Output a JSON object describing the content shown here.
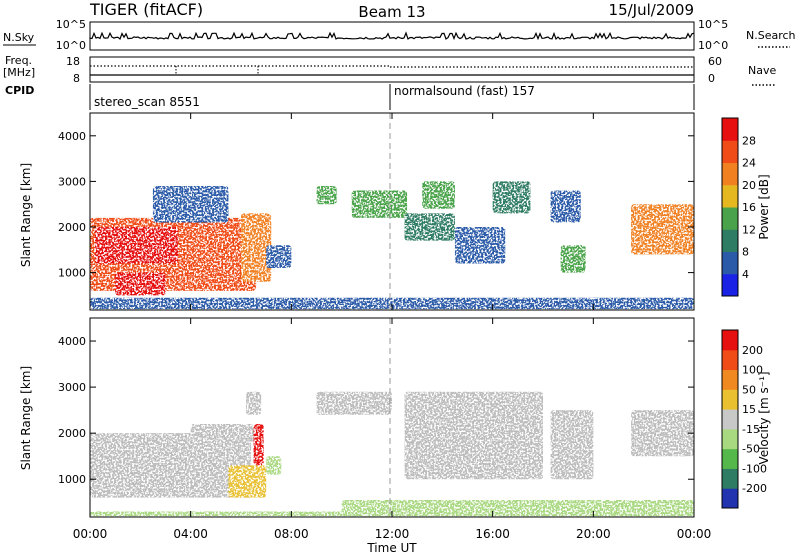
{
  "header": {
    "title": "TIGER (fitACF)",
    "beam": "Beam 13",
    "date": "15/Jul/2009"
  },
  "strip_labels": {
    "nsky": "N.Sky",
    "nsky_ticks": [
      "10^5",
      "10^0"
    ],
    "nsearch": "N.Search",
    "nsearch_ticks": [
      "10^5",
      "10^0"
    ],
    "freq_line1": "Freq.",
    "freq_line2": "[MHz]",
    "freq_ticks": [
      "18",
      "8"
    ],
    "nave": "Nave",
    "nave_ticks": [
      "60",
      "0"
    ],
    "cpid": "CPID",
    "cpid_segments": [
      {
        "label": "stereo_scan 8551",
        "start_hour": 0
      },
      {
        "label": "normalsound (fast) 157",
        "start_hour": 12
      }
    ]
  },
  "x_axis": {
    "label": "Time UT",
    "ticks": [
      "00:00",
      "04:00",
      "08:00",
      "12:00",
      "16:00",
      "20:00",
      "00:00"
    ],
    "tick_hours": [
      0,
      4,
      8,
      12,
      16,
      20,
      24
    ],
    "range_hours": [
      0,
      24
    ]
  },
  "colors": {
    "power_scale": [
      "#1a22e6",
      "#2a5aa8",
      "#2e7c63",
      "#4aa34a",
      "#e6b820",
      "#f08020",
      "#f04c18",
      "#e61010"
    ],
    "velocity_scale": [
      "#2233b0",
      "#2e7c63",
      "#54b84a",
      "#a8d880",
      "#c8c8c8",
      "#e8c030",
      "#f08a20",
      "#f04c18",
      "#e61010"
    ],
    "ground_scatter": "#bcbcbc"
  },
  "chart_data": [
    {
      "type": "heatmap",
      "name": "power",
      "ylabel": "Slant Range [km]",
      "yticks": [
        "1000",
        "2000",
        "3000",
        "4000"
      ],
      "ytick_values": [
        1000,
        2000,
        3000,
        4000
      ],
      "ylim": [
        180,
        4500
      ],
      "xlim": [
        0,
        24
      ],
      "colorbar_label": "Power [dB]",
      "colorbar_ticks": [
        "4",
        "8",
        "12",
        "16",
        "20",
        "24",
        "28"
      ],
      "colorbar_range": [
        0,
        32
      ],
      "regions": [
        {
          "x": [
            0.0,
            6.6
          ],
          "y": [
            600,
            2200
          ],
          "value": 24
        },
        {
          "x": [
            0.2,
            3.5
          ],
          "y": [
            1200,
            2000
          ],
          "value": 28
        },
        {
          "x": [
            1.0,
            3.0
          ],
          "y": [
            500,
            1000
          ],
          "value": 28
        },
        {
          "x": [
            6.0,
            7.2
          ],
          "y": [
            800,
            2300
          ],
          "value": 20
        },
        {
          "x": [
            7.0,
            8.0
          ],
          "y": [
            1100,
            1600
          ],
          "value": 6
        },
        {
          "x": [
            2.5,
            5.5
          ],
          "y": [
            2100,
            2900
          ],
          "value": 4
        },
        {
          "x": [
            9.0,
            9.8
          ],
          "y": [
            2500,
            2900
          ],
          "value": 14
        },
        {
          "x": [
            10.4,
            12.6
          ],
          "y": [
            2200,
            2800
          ],
          "value": 14
        },
        {
          "x": [
            12.5,
            14.5
          ],
          "y": [
            1700,
            2300
          ],
          "value": 8
        },
        {
          "x": [
            13.2,
            14.5
          ],
          "y": [
            2400,
            3000
          ],
          "value": 12
        },
        {
          "x": [
            14.5,
            16.5
          ],
          "y": [
            1200,
            2000
          ],
          "value": 6
        },
        {
          "x": [
            16.0,
            17.5
          ],
          "y": [
            2300,
            3000
          ],
          "value": 8
        },
        {
          "x": [
            18.3,
            19.5
          ],
          "y": [
            2100,
            2800
          ],
          "value": 6
        },
        {
          "x": [
            18.7,
            19.7
          ],
          "y": [
            1000,
            1600
          ],
          "value": 14
        },
        {
          "x": [
            21.5,
            24.0
          ],
          "y": [
            1400,
            2500
          ],
          "value": 20
        },
        {
          "x": [
            0.0,
            24.0
          ],
          "y": [
            200,
            450
          ],
          "value": 6
        }
      ]
    },
    {
      "type": "heatmap",
      "name": "velocity",
      "ylabel": "Slant Range [km]",
      "yticks": [
        "1000",
        "2000",
        "3000",
        "4000"
      ],
      "ytick_values": [
        1000,
        2000,
        3000,
        4000
      ],
      "ylim": [
        180,
        4500
      ],
      "xlim": [
        0,
        24
      ],
      "colorbar_label": "Velocity [m s⁻¹]",
      "colorbar_ticks": [
        "200",
        "100",
        "50",
        "15",
        "-15",
        "-50",
        "-100",
        "-200"
      ],
      "colorbar_range": [
        -250,
        250
      ],
      "regions": [
        {
          "x": [
            0.0,
            6.4
          ],
          "y": [
            600,
            2000
          ],
          "value": 0,
          "ground_scatter": true
        },
        {
          "x": [
            4.0,
            6.5
          ],
          "y": [
            1800,
            2200
          ],
          "value": 0,
          "ground_scatter": true
        },
        {
          "x": [
            5.5,
            7.0
          ],
          "y": [
            600,
            1300
          ],
          "value": 40
        },
        {
          "x": [
            6.5,
            6.9
          ],
          "y": [
            1300,
            2200
          ],
          "value": 200
        },
        {
          "x": [
            7.0,
            7.6
          ],
          "y": [
            1100,
            1500
          ],
          "value": -60
        },
        {
          "x": [
            6.2,
            6.8
          ],
          "y": [
            2400,
            2900
          ],
          "value": 0,
          "ground_scatter": true
        },
        {
          "x": [
            9.0,
            12.0
          ],
          "y": [
            2400,
            2900
          ],
          "value": 0,
          "ground_scatter": true
        },
        {
          "x": [
            12.5,
            18.0
          ],
          "y": [
            1000,
            2900
          ],
          "value": 0,
          "ground_scatter": true
        },
        {
          "x": [
            18.3,
            20.0
          ],
          "y": [
            1000,
            2500
          ],
          "value": 0,
          "ground_scatter": true
        },
        {
          "x": [
            21.5,
            24.0
          ],
          "y": [
            1500,
            2500
          ],
          "value": 0,
          "ground_scatter": true
        },
        {
          "x": [
            10.0,
            24.0
          ],
          "y": [
            200,
            550
          ],
          "value": -30
        },
        {
          "x": [
            0.0,
            24.0
          ],
          "y": [
            200,
            300
          ],
          "value": -30
        }
      ]
    }
  ]
}
